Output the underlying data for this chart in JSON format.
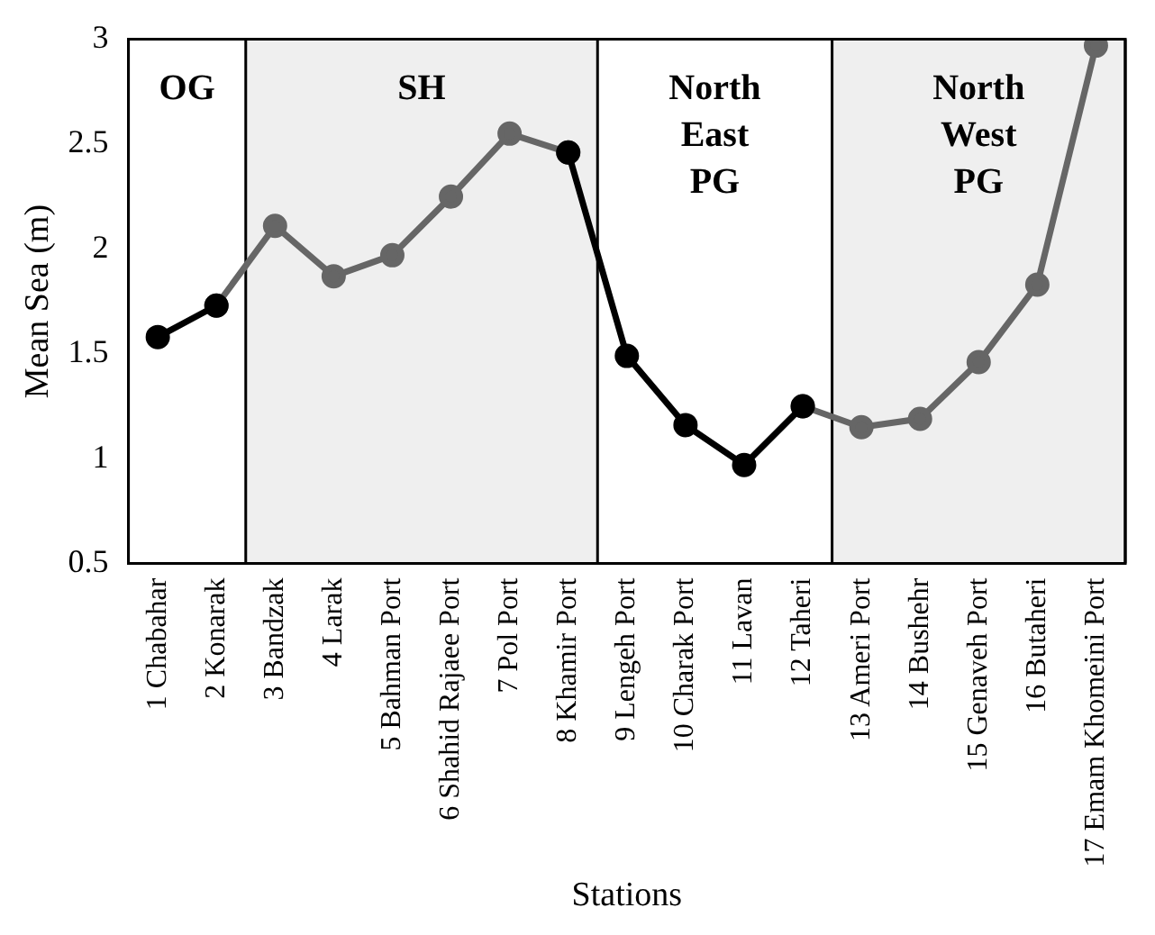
{
  "chart_data": {
    "type": "line",
    "xlabel": "Stations",
    "ylabel": "Mean Sea (m)",
    "categories": [
      "1 Chabahar",
      "2 Konarak",
      "3 Bandzak",
      "4 Larak",
      "5 Bahman Port",
      "6 Shahid Rajaee Port",
      "7 Pol Port",
      "8 Khamir Port",
      "9 Lengeh Port",
      "10 Charak Port",
      "11 Lavan",
      "12 Taheri",
      "13 Ameri Port",
      "14 Bushehr",
      "15 Genaveh Port",
      "16 Butaheri",
      "17 Emam Khomeini Port"
    ],
    "series": [
      {
        "color": "#000000",
        "values": [
          1.58,
          1.73,
          null,
          null,
          null,
          null,
          null,
          2.46,
          1.49,
          1.16,
          0.97,
          1.25,
          null,
          null,
          null,
          null,
          null
        ]
      },
      {
        "color": "#666666",
        "values": [
          null,
          1.73,
          2.11,
          1.87,
          1.97,
          2.25,
          2.55,
          2.46,
          null,
          null,
          null,
          1.25,
          1.15,
          1.19,
          1.46,
          1.83,
          2.97
        ]
      }
    ],
    "ylim": [
      0.5,
      3
    ],
    "yticks": [
      0.5,
      1,
      1.5,
      2,
      2.5,
      3
    ],
    "grid": false,
    "legend": false,
    "marker": "circle",
    "line_style": "solid",
    "annotations": [
      "OG",
      "North East PG"
    ],
    "bands": [
      {
        "axis": "x",
        "from": "3 Bandzak",
        "to": "8 Khamir Port",
        "label": "SH",
        "color": "#efefef"
      },
      {
        "axis": "x",
        "from": "13 Ameri Port",
        "to": "17 Emam Khomeini Port",
        "label": "North West PG",
        "color": "#efefef"
      }
    ]
  }
}
